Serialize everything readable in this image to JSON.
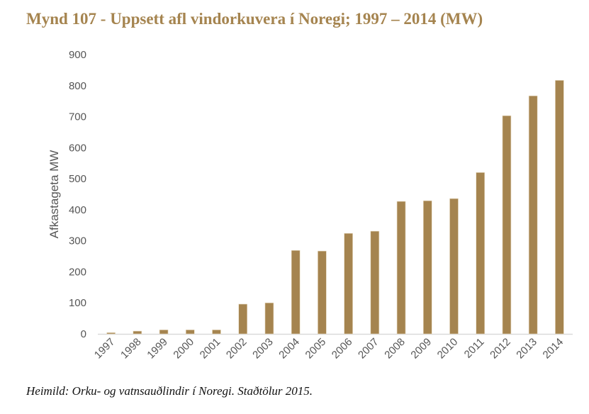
{
  "chart_data": {
    "type": "bar",
    "title": "Mynd 107 - Uppsett afl vindorkuvera í Noregi; 1997 – 2014 (MW)",
    "xlabel": "",
    "ylabel": "Afkastageta MW",
    "categories": [
      "1997",
      "1998",
      "1999",
      "2000",
      "2001",
      "2002",
      "2003",
      "2004",
      "2005",
      "2006",
      "2007",
      "2008",
      "2009",
      "2010",
      "2011",
      "2012",
      "2013",
      "2014"
    ],
    "values": [
      4,
      9,
      13,
      13,
      13,
      96,
      100,
      269,
      267,
      324,
      331,
      427,
      429,
      436,
      520,
      703,
      767,
      817
    ],
    "ylim": [
      0,
      900
    ],
    "yticks": [
      0,
      100,
      200,
      300,
      400,
      500,
      600,
      700,
      800,
      900
    ],
    "grid": false,
    "bar_color": "#a5844f",
    "source": "Heimild: Orku- og vatnsauðlindir í Noregi. Staðtölur 2015."
  }
}
